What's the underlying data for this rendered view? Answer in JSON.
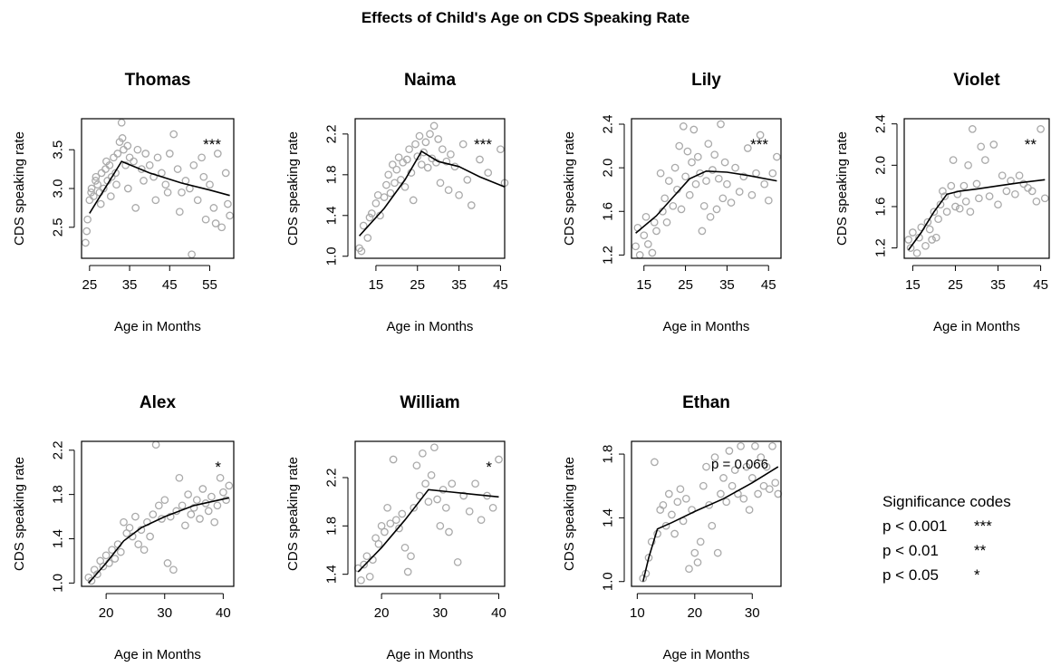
{
  "figure": {
    "title": "Effects of Child's Age on CDS Speaking Rate",
    "point_color": "#aaaaaa",
    "line_color": "#000000"
  },
  "legend": {
    "title": "Significance codes",
    "rows": [
      {
        "label": "p < 0.001",
        "code": "***"
      },
      {
        "label": "p < 0.01",
        "code": "**"
      },
      {
        "label": "p < 0.05",
        "code": "*"
      }
    ]
  },
  "chart_data": [
    {
      "type": "scatter",
      "title": "Thomas",
      "xlabel": "Age in Months",
      "ylabel": "CDS speaking rate",
      "xlim": [
        23,
        61
      ],
      "ylim": [
        2.1,
        3.9
      ],
      "xticks": [
        25,
        35,
        45,
        55
      ],
      "yticks": [
        2.5,
        3.0,
        3.5
      ],
      "annotation": "***",
      "fit_line": {
        "x": [
          25,
          33,
          40,
          48,
          55,
          60
        ],
        "y": [
          2.68,
          3.35,
          3.2,
          3.07,
          2.98,
          2.91
        ]
      },
      "points": {
        "x": [
          24,
          24.5,
          25,
          25.5,
          26,
          26.5,
          27,
          27.5,
          28,
          28.5,
          29,
          29.5,
          30,
          30.5,
          31,
          31.5,
          32,
          32.5,
          33,
          33.5,
          34,
          34.5,
          35,
          36,
          37,
          38,
          39,
          40,
          41,
          42,
          43,
          44,
          45,
          46,
          47,
          48,
          49,
          50,
          51,
          52,
          53,
          54,
          55,
          56,
          57,
          58,
          59,
          60,
          24.3,
          25.4,
          26.6,
          27.8,
          29.2,
          30.3,
          31.7,
          33.2,
          34.6,
          36.5,
          38.5,
          41.5,
          44.5,
          47.5,
          50.5,
          53.5,
          56.5,
          59.5
        ],
        "y": [
          2.3,
          2.6,
          2.85,
          3.0,
          2.9,
          3.1,
          3.05,
          2.95,
          3.2,
          3.0,
          3.25,
          3.1,
          3.3,
          3.15,
          3.4,
          3.2,
          3.45,
          3.6,
          3.85,
          3.5,
          3.3,
          3.55,
          3.4,
          3.35,
          3.5,
          3.25,
          3.45,
          3.3,
          3.15,
          3.4,
          3.2,
          3.05,
          3.45,
          3.7,
          3.25,
          2.95,
          3.1,
          3.0,
          3.3,
          2.85,
          3.4,
          2.6,
          3.05,
          2.75,
          3.45,
          2.5,
          3.2,
          2.65,
          2.45,
          2.95,
          3.15,
          2.8,
          3.35,
          2.9,
          3.05,
          3.65,
          3.0,
          2.75,
          3.1,
          2.85,
          2.95,
          2.7,
          2.15,
          3.15,
          2.55,
          2.8
        ]
      }
    },
    {
      "type": "scatter",
      "title": "Naima",
      "xlabel": "Age in Months",
      "ylabel": "CDS speaking rate",
      "xlim": [
        10,
        46
      ],
      "ylim": [
        0.98,
        2.35
      ],
      "xticks": [
        15,
        25,
        35,
        45
      ],
      "yticks": [
        1.0,
        1.4,
        1.8,
        2.2
      ],
      "annotation": "***",
      "fit_line": {
        "x": [
          11,
          17,
          22,
          26,
          30,
          35,
          40,
          46
        ],
        "y": [
          1.2,
          1.47,
          1.75,
          2.03,
          1.93,
          1.88,
          1.78,
          1.68
        ]
      },
      "points": {
        "x": [
          11,
          11.5,
          12,
          13,
          13.5,
          14,
          15,
          15.5,
          16,
          17,
          17.5,
          18,
          18.5,
          19,
          19.5,
          20,
          20.5,
          21,
          21.5,
          22,
          22.5,
          23,
          23.5,
          24,
          24.5,
          25,
          25.5,
          26,
          26.5,
          27,
          27.5,
          28,
          28.5,
          29,
          29.5,
          30,
          30.5,
          31,
          32,
          32.5,
          33,
          34,
          35,
          36,
          37,
          38,
          40,
          42,
          45,
          46
        ],
        "y": [
          1.08,
          1.05,
          1.3,
          1.18,
          1.38,
          1.42,
          1.52,
          1.6,
          1.4,
          1.58,
          1.7,
          1.8,
          1.62,
          1.9,
          1.72,
          1.85,
          1.97,
          1.75,
          1.92,
          1.68,
          1.95,
          2.05,
          1.82,
          1.55,
          2.1,
          1.98,
          2.18,
          1.9,
          2.02,
          2.12,
          1.87,
          2.2,
          1.96,
          2.28,
          1.92,
          2.15,
          1.72,
          2.05,
          1.93,
          1.65,
          2.0,
          1.88,
          1.6,
          2.1,
          1.75,
          1.5,
          1.95,
          1.82,
          2.05,
          1.72
        ]
      }
    },
    {
      "type": "scatter",
      "title": "Lily",
      "xlabel": "Age in Months",
      "ylabel": "CDS speaking rate",
      "xlim": [
        12,
        48
      ],
      "ylim": [
        1.17,
        2.45
      ],
      "xticks": [
        15,
        25,
        35,
        45
      ],
      "yticks": [
        1.2,
        1.6,
        2.0,
        2.4
      ],
      "annotation": "***",
      "fit_line": {
        "x": [
          13,
          18,
          22,
          26,
          30,
          35,
          40,
          47
        ],
        "y": [
          1.4,
          1.56,
          1.73,
          1.9,
          1.97,
          1.96,
          1.93,
          1.88
        ]
      },
      "points": {
        "x": [
          13,
          13.5,
          14,
          15,
          15.5,
          16,
          17,
          17.5,
          18,
          19,
          19.5,
          20,
          20.5,
          21,
          22,
          22.5,
          23,
          23.5,
          24,
          24.5,
          25,
          25.5,
          26,
          26.5,
          27,
          27.5,
          28,
          28.5,
          29,
          29.5,
          30,
          30.5,
          31,
          31.5,
          32,
          32.5,
          33,
          33.5,
          34,
          34.5,
          35,
          36,
          37,
          38,
          39,
          40,
          41,
          42,
          43,
          44,
          45,
          46,
          47
        ],
        "y": [
          1.28,
          1.45,
          1.2,
          1.38,
          1.55,
          1.3,
          1.22,
          1.5,
          1.42,
          1.95,
          1.6,
          1.72,
          1.5,
          1.88,
          1.65,
          2.0,
          1.8,
          2.2,
          1.62,
          2.38,
          1.92,
          2.15,
          1.75,
          2.05,
          2.35,
          1.85,
          2.1,
          1.95,
          1.42,
          1.65,
          1.88,
          2.22,
          1.55,
          1.98,
          2.12,
          1.62,
          1.9,
          2.4,
          1.72,
          2.05,
          1.85,
          1.68,
          2.0,
          1.78,
          1.92,
          2.18,
          1.75,
          1.95,
          2.3,
          1.85,
          1.7,
          1.95,
          2.1
        ]
      }
    },
    {
      "type": "scatter",
      "title": "Violet",
      "xlabel": "Age in Months",
      "ylabel": "CDS speaking rate",
      "xlim": [
        13,
        47
      ],
      "ylim": [
        1.1,
        2.45
      ],
      "xticks": [
        15,
        25,
        35,
        45
      ],
      "yticks": [
        1.2,
        1.6,
        2.0,
        2.4
      ],
      "annotation": "**",
      "fit_line": {
        "x": [
          14,
          17,
          20,
          23,
          26,
          30,
          35,
          40,
          46
        ],
        "y": [
          1.18,
          1.35,
          1.55,
          1.72,
          1.75,
          1.77,
          1.8,
          1.83,
          1.86
        ]
      },
      "points": {
        "x": [
          14,
          14.5,
          15,
          16,
          16.5,
          17,
          18,
          18.5,
          19,
          19.5,
          20,
          20.5,
          21,
          21.5,
          22,
          22.5,
          23,
          24,
          24.5,
          25,
          25.5,
          26,
          27,
          27.5,
          28,
          28.5,
          29,
          30,
          30.5,
          31,
          32,
          33,
          34,
          35,
          36,
          37,
          38,
          39,
          40,
          41,
          42,
          43,
          44,
          45,
          46
        ],
        "y": [
          1.28,
          1.2,
          1.35,
          1.15,
          1.3,
          1.4,
          1.22,
          1.45,
          1.38,
          1.28,
          1.55,
          1.3,
          1.48,
          1.62,
          1.75,
          1.7,
          1.55,
          1.8,
          2.05,
          1.6,
          1.72,
          1.58,
          1.8,
          1.65,
          2.0,
          1.55,
          2.35,
          1.82,
          1.68,
          2.18,
          2.05,
          1.7,
          2.2,
          1.62,
          1.9,
          1.75,
          1.85,
          1.72,
          1.9,
          1.82,
          1.78,
          1.75,
          1.65,
          2.35,
          1.68
        ]
      }
    },
    {
      "type": "scatter",
      "title": "Alex",
      "xlabel": "Age in Months",
      "ylabel": "CDS speaking rate",
      "xlim": [
        15.8,
        41.8
      ],
      "ylim": [
        0.97,
        2.28
      ],
      "xticks": [
        20,
        30,
        40
      ],
      "yticks": [
        1.0,
        1.4,
        1.8,
        2.2
      ],
      "annotation": "*",
      "fit_line": {
        "x": [
          17,
          20,
          23,
          26,
          30,
          35,
          41
        ],
        "y": [
          1.0,
          1.18,
          1.38,
          1.5,
          1.6,
          1.7,
          1.77
        ]
      },
      "points": {
        "x": [
          17,
          17.5,
          18,
          18.5,
          19,
          19.5,
          20,
          20.5,
          21,
          21.5,
          22,
          22.5,
          23,
          23.5,
          24,
          24.5,
          25,
          25.5,
          26,
          26.5,
          27,
          27.5,
          28,
          28.5,
          29,
          29.5,
          30,
          30.5,
          31,
          31.5,
          32,
          32.5,
          33,
          33.5,
          34,
          34.5,
          35,
          35.5,
          36,
          36.5,
          37,
          37.5,
          38,
          38.5,
          39,
          39.5,
          40,
          40.5,
          41
        ],
        "y": [
          1.05,
          1.02,
          1.12,
          1.08,
          1.2,
          1.15,
          1.25,
          1.18,
          1.3,
          1.22,
          1.35,
          1.28,
          1.55,
          1.45,
          1.5,
          1.42,
          1.6,
          1.35,
          1.48,
          1.3,
          1.55,
          1.42,
          1.62,
          2.25,
          1.7,
          1.58,
          1.75,
          1.18,
          1.6,
          1.12,
          1.65,
          1.95,
          1.7,
          1.52,
          1.8,
          1.62,
          1.68,
          1.75,
          1.58,
          1.85,
          1.72,
          1.65,
          1.78,
          1.55,
          1.7,
          1.95,
          1.82,
          1.75,
          1.88
        ]
      }
    },
    {
      "type": "scatter",
      "title": "William",
      "xlabel": "Age in Months",
      "ylabel": "CDS speaking rate",
      "xlim": [
        15.5,
        41
      ],
      "ylim": [
        1.3,
        2.5
      ],
      "xticks": [
        20,
        30,
        40
      ],
      "yticks": [
        1.4,
        1.8,
        2.2
      ],
      "annotation": "*",
      "fit_line": {
        "x": [
          16,
          20,
          24,
          28,
          32,
          36,
          40
        ],
        "y": [
          1.42,
          1.62,
          1.85,
          2.1,
          2.08,
          2.06,
          2.04
        ]
      },
      "points": {
        "x": [
          16,
          16.5,
          17,
          17.5,
          18,
          18.5,
          19,
          19.5,
          20,
          20.5,
          21,
          21.5,
          22,
          22.5,
          23,
          23.5,
          24,
          24.5,
          25,
          25.5,
          26,
          26.5,
          27,
          27.5,
          28,
          28.5,
          29,
          29.5,
          30,
          30.5,
          31,
          31.5,
          32,
          33,
          34,
          35,
          36,
          37,
          38,
          39,
          40
        ],
        "y": [
          1.45,
          1.35,
          1.48,
          1.55,
          1.38,
          1.52,
          1.7,
          1.65,
          1.8,
          1.75,
          1.95,
          1.82,
          2.35,
          1.85,
          1.78,
          1.9,
          1.62,
          1.42,
          1.55,
          1.95,
          2.3,
          2.05,
          2.4,
          2.15,
          2.0,
          2.22,
          2.45,
          2.02,
          1.8,
          2.1,
          1.95,
          1.75,
          2.15,
          1.5,
          2.05,
          1.92,
          2.15,
          1.85,
          2.05,
          1.95,
          2.35
        ]
      }
    },
    {
      "type": "scatter",
      "title": "Ethan",
      "xlabel": "Age in Months",
      "ylabel": "CDS speaking rate",
      "xlim": [
        9,
        35
      ],
      "ylim": [
        0.97,
        1.88
      ],
      "xticks": [
        10,
        20,
        30
      ],
      "yticks": [
        1.0,
        1.4,
        1.8
      ],
      "annotation": "p = 0.066",
      "fit_line": {
        "x": [
          11,
          12,
          13.5,
          16,
          20,
          25,
          30,
          34.5
        ],
        "y": [
          1.0,
          1.15,
          1.33,
          1.37,
          1.44,
          1.52,
          1.62,
          1.72
        ]
      },
      "points": {
        "x": [
          11,
          11.5,
          12,
          12.5,
          13,
          13.5,
          14,
          14.5,
          15,
          15.5,
          16,
          16.5,
          17,
          17.5,
          18,
          18.5,
          19,
          19.5,
          20,
          20.5,
          21,
          21.5,
          22,
          22.5,
          23,
          23.5,
          24,
          24.5,
          25,
          25.5,
          26,
          26.5,
          27,
          27.5,
          28,
          28.5,
          29,
          29.5,
          30,
          30.5,
          31,
          31.5,
          32,
          32.5,
          33,
          33.5,
          34,
          34.5
        ],
        "y": [
          1.02,
          1.05,
          1.15,
          1.25,
          1.75,
          1.3,
          1.45,
          1.48,
          1.35,
          1.55,
          1.42,
          1.3,
          1.5,
          1.58,
          1.38,
          1.52,
          1.08,
          1.45,
          1.18,
          1.12,
          1.25,
          1.6,
          1.72,
          1.48,
          1.35,
          1.78,
          1.18,
          1.55,
          1.65,
          1.5,
          1.82,
          1.6,
          1.7,
          1.55,
          1.85,
          1.52,
          1.72,
          1.45,
          1.65,
          1.85,
          1.55,
          1.78,
          1.6,
          1.72,
          1.58,
          1.85,
          1.62,
          1.55
        ]
      }
    }
  ]
}
